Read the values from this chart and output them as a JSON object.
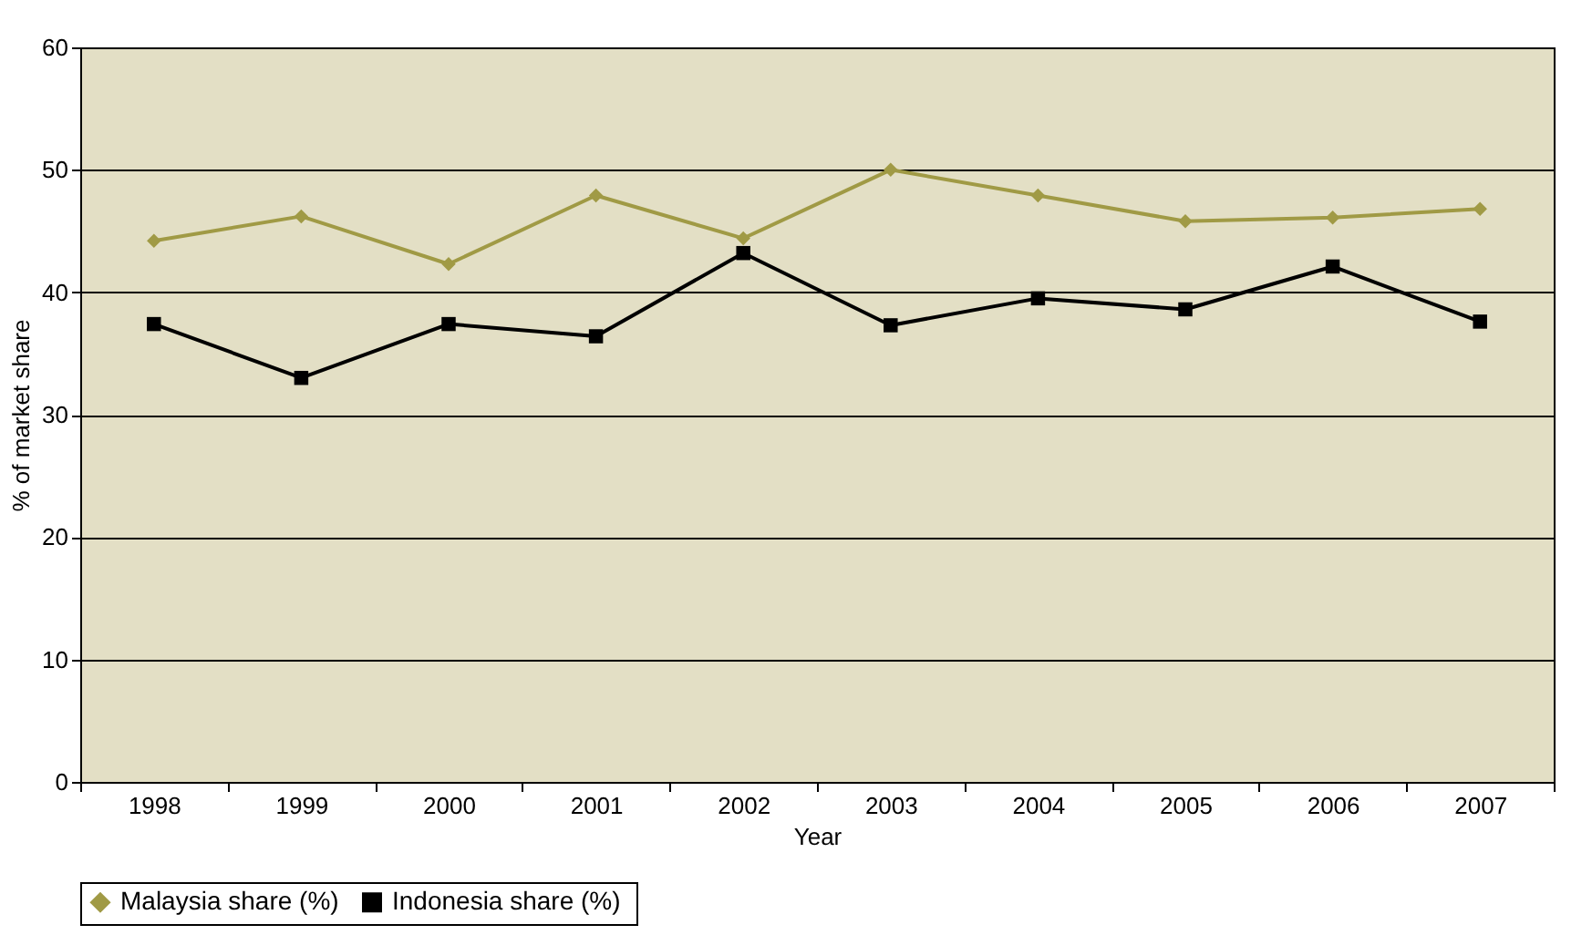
{
  "chart_data": {
    "type": "line",
    "xlabel": "Year",
    "ylabel": "% of market share",
    "categories": [
      "1998",
      "1999",
      "2000",
      "2001",
      "2002",
      "2003",
      "2004",
      "2005",
      "2006",
      "2007"
    ],
    "series": [
      {
        "name": "Malaysia share (%)",
        "color": "#a09a45",
        "marker": "diamond",
        "values": [
          44.2,
          46.2,
          42.3,
          47.9,
          44.4,
          50.0,
          47.9,
          45.8,
          46.1,
          46.8
        ]
      },
      {
        "name": "Indonesia  share (%)",
        "color": "#000000",
        "marker": "square",
        "values": [
          37.4,
          33.0,
          37.4,
          36.4,
          43.2,
          37.3,
          39.5,
          38.6,
          42.1,
          37.6
        ]
      }
    ],
    "ylim": [
      0,
      60
    ],
    "yticks": [
      0,
      10,
      20,
      30,
      40,
      50,
      60
    ],
    "grid": "y",
    "legend": "bottom",
    "line_style": "solid"
  }
}
